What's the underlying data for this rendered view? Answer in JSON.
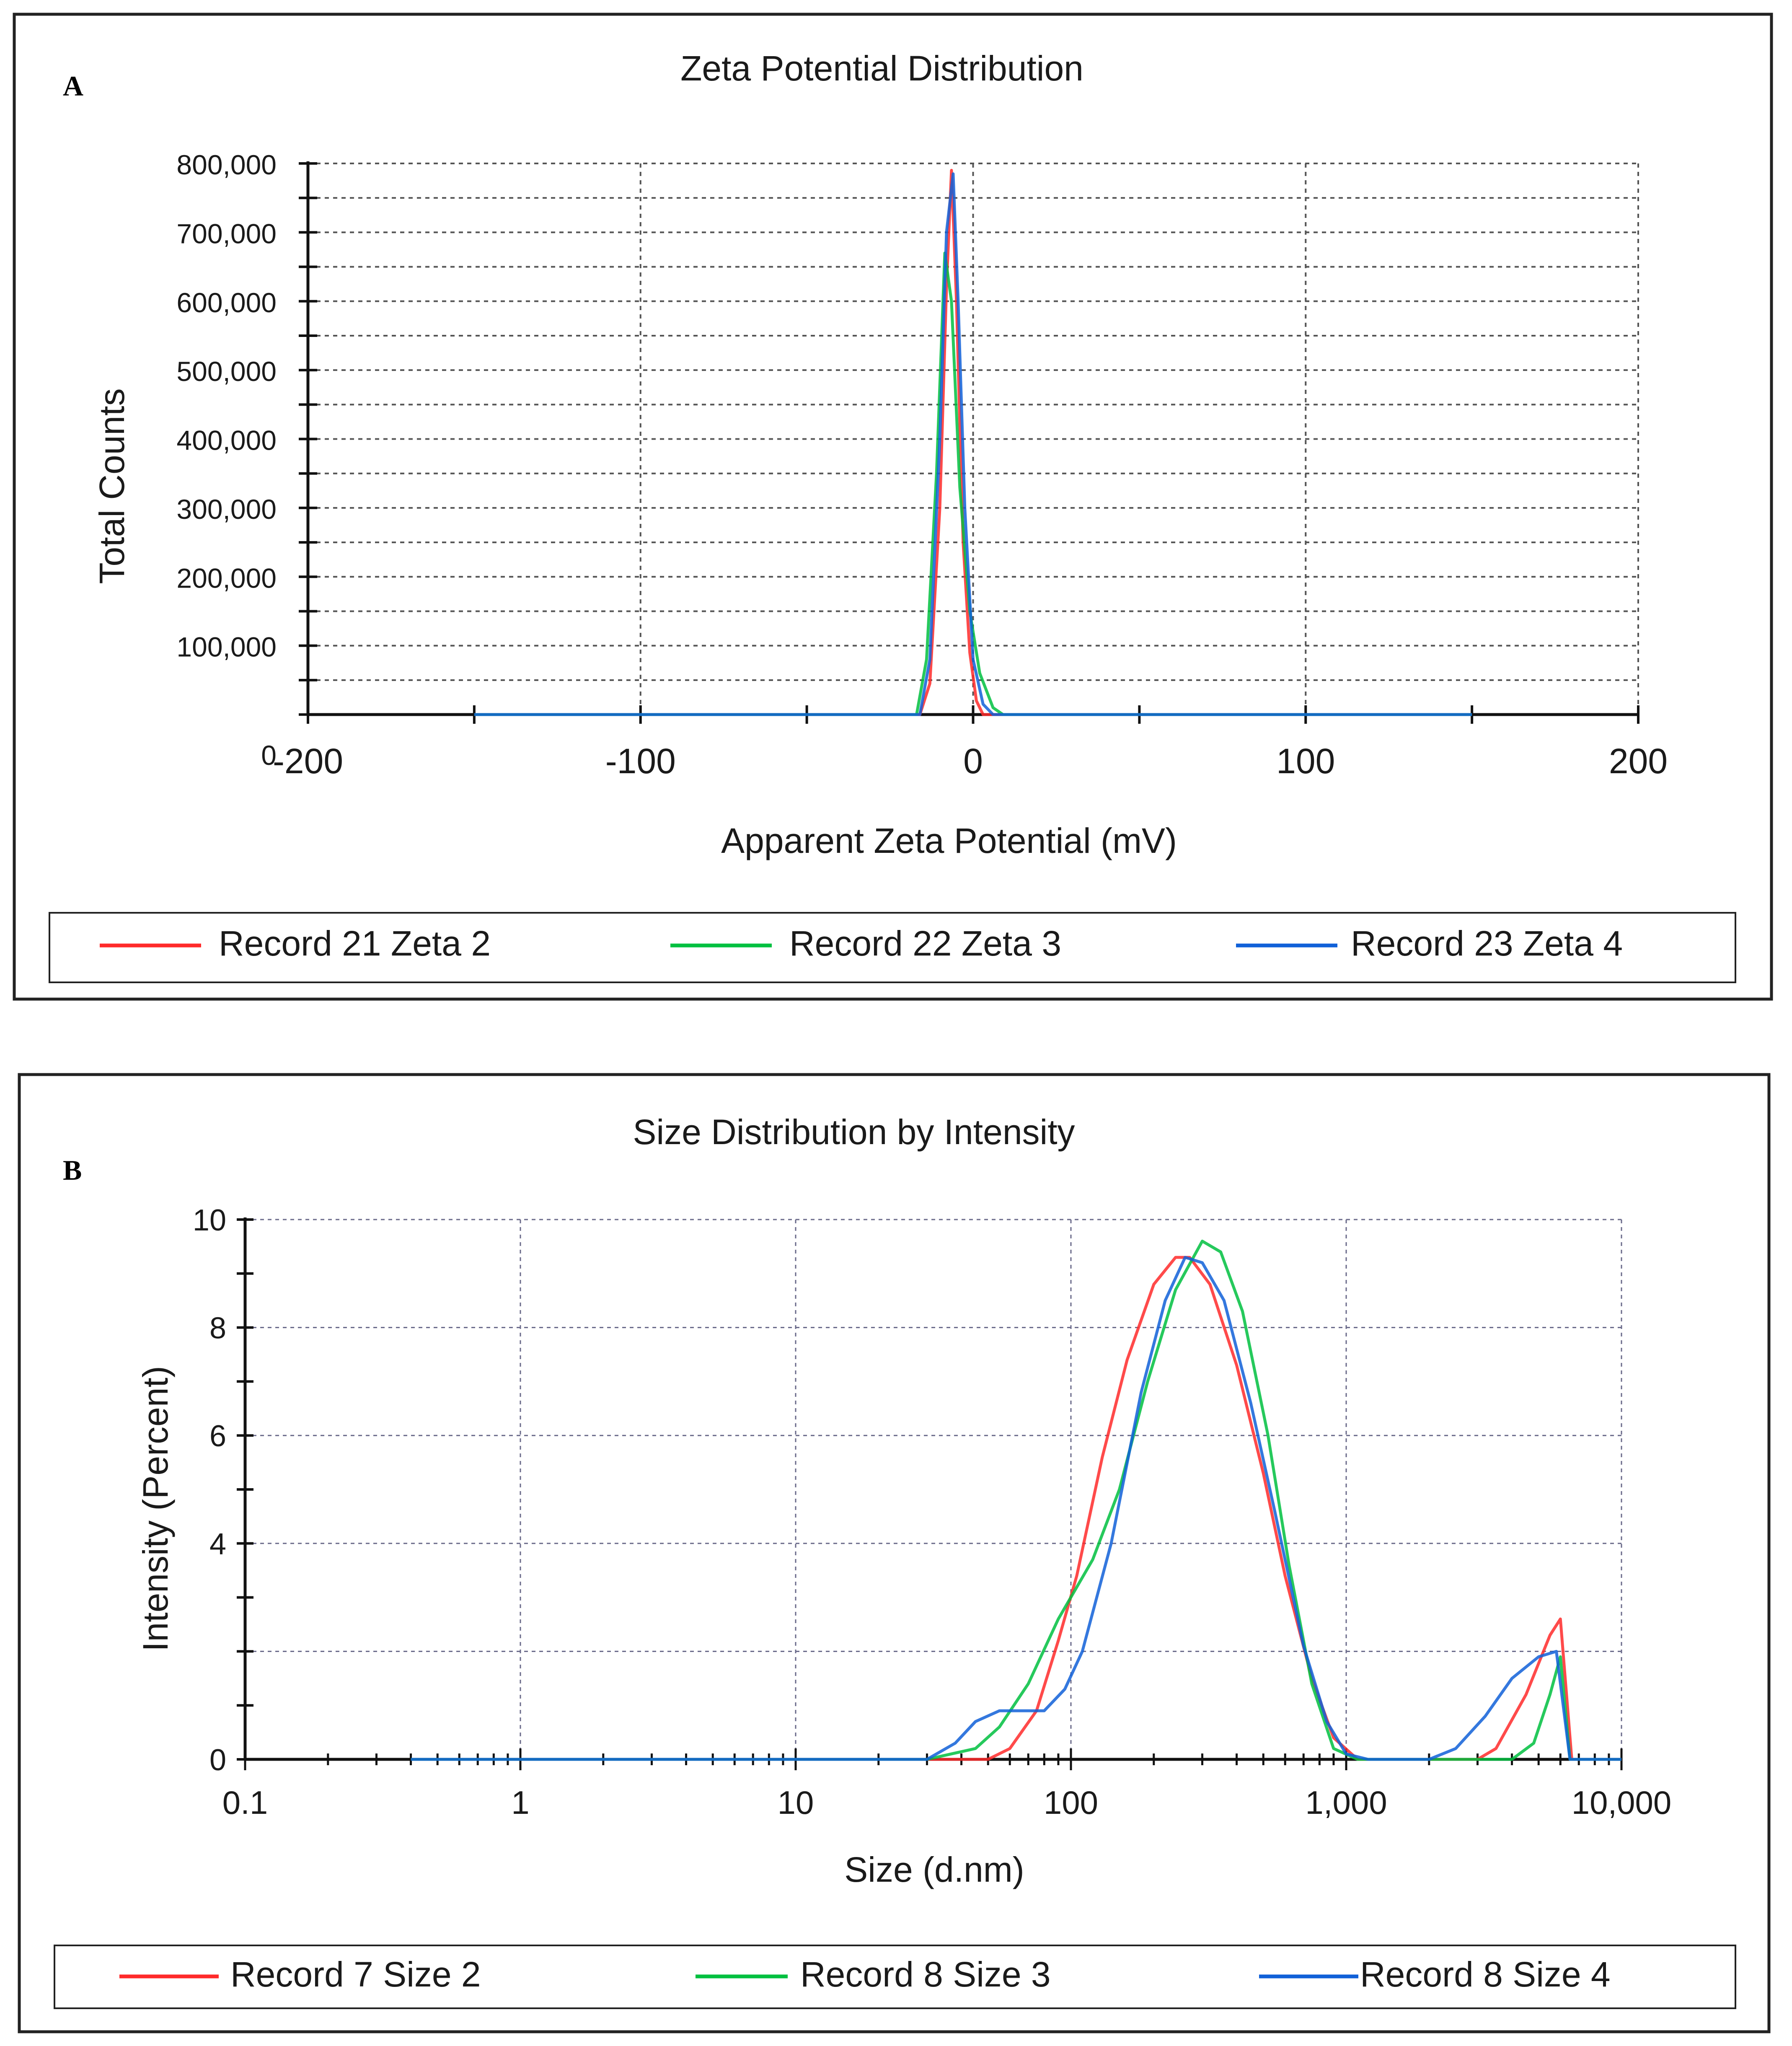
{
  "chart_data": [
    {
      "panel_label": "A",
      "type": "line",
      "title": "Zeta Potential Distribution",
      "xlabel": "Apparent Zeta Potential (mV)",
      "ylabel": "Total Counts",
      "xlim": [
        -200,
        200
      ],
      "ylim": [
        0,
        800000
      ],
      "x_ticks": [
        {
          "value": -200,
          "label": "-200"
        },
        {
          "value": -100,
          "label": "-100"
        },
        {
          "value": 0,
          "label": "0"
        },
        {
          "value": 100,
          "label": "100"
        },
        {
          "value": 200,
          "label": "200"
        }
      ],
      "y_ticks": [
        {
          "value": 0,
          "label": "0"
        },
        {
          "value": 100000,
          "label": "100,000"
        },
        {
          "value": 200000,
          "label": "200,000"
        },
        {
          "value": 300000,
          "label": "300,000"
        },
        {
          "value": 400000,
          "label": "400,000"
        },
        {
          "value": 500000,
          "label": "500,000"
        },
        {
          "value": 600000,
          "label": "600,000"
        },
        {
          "value": 700000,
          "label": "700,000"
        },
        {
          "value": 800000,
          "label": "800,000"
        }
      ],
      "grid": true,
      "legend_position": "bottom",
      "series": [
        {
          "name": "Record 21 Zeta 2",
          "color": "#ff2a2a",
          "points": [
            [
              -150,
              0
            ],
            [
              -16,
              0
            ],
            [
              -13,
              45000
            ],
            [
              -10,
              300000
            ],
            [
              -8,
              620000
            ],
            [
              -6.5,
              790000
            ],
            [
              -5,
              600000
            ],
            [
              -3,
              250000
            ],
            [
              -1,
              90000
            ],
            [
              1,
              20000
            ],
            [
              3,
              0
            ],
            [
              150,
              0
            ]
          ]
        },
        {
          "name": "Record 22 Zeta 3",
          "color": "#00c040",
          "points": [
            [
              -150,
              0
            ],
            [
              -17,
              0
            ],
            [
              -14,
              80000
            ],
            [
              -11,
              350000
            ],
            [
              -8.5,
              670000
            ],
            [
              -6.5,
              600000
            ],
            [
              -4,
              330000
            ],
            [
              -1,
              150000
            ],
            [
              2,
              60000
            ],
            [
              6,
              10000
            ],
            [
              9,
              0
            ],
            [
              150,
              0
            ]
          ]
        },
        {
          "name": "Record 23 Zeta 4",
          "color": "#1060d8",
          "points": [
            [
              -150,
              0
            ],
            [
              -16,
              0
            ],
            [
              -13,
              80000
            ],
            [
              -10,
              400000
            ],
            [
              -8,
              700000
            ],
            [
              -6,
              785000
            ],
            [
              -4.5,
              600000
            ],
            [
              -2.5,
              300000
            ],
            [
              0,
              80000
            ],
            [
              3,
              15000
            ],
            [
              6,
              0
            ],
            [
              150,
              0
            ]
          ]
        }
      ]
    },
    {
      "panel_label": "B",
      "type": "line",
      "title": "Size Distribution by Intensity",
      "xlabel": "Size (d.nm)",
      "ylabel": "Intensity (Percent)",
      "x_scale": "log",
      "xlim": [
        0.1,
        10000
      ],
      "ylim": [
        0,
        10
      ],
      "x_ticks": [
        {
          "value": 0.1,
          "label": "0.1"
        },
        {
          "value": 1,
          "label": "1"
        },
        {
          "value": 10,
          "label": "10"
        },
        {
          "value": 100,
          "label": "100"
        },
        {
          "value": 1000,
          "label": "1,000"
        },
        {
          "value": 10000,
          "label": "10,000"
        }
      ],
      "y_ticks": [
        {
          "value": 0,
          "label": "0"
        },
        {
          "value": 4,
          "label": "4"
        },
        {
          "value": 6,
          "label": "6"
        },
        {
          "value": 8,
          "label": "8"
        },
        {
          "value": 10,
          "label": "10"
        }
      ],
      "grid": true,
      "legend_position": "bottom",
      "series": [
        {
          "name": "Record 7 Size 2",
          "color": "#ff2a2a",
          "points": [
            [
              0.4,
              0
            ],
            [
              50,
              0
            ],
            [
              60,
              0.2
            ],
            [
              75,
              0.9
            ],
            [
              90,
              2.2
            ],
            [
              105,
              3.4
            ],
            [
              130,
              5.6
            ],
            [
              160,
              7.4
            ],
            [
              200,
              8.8
            ],
            [
              240,
              9.3
            ],
            [
              270,
              9.3
            ],
            [
              320,
              8.8
            ],
            [
              400,
              7.3
            ],
            [
              500,
              5.3
            ],
            [
              600,
              3.4
            ],
            [
              750,
              1.5
            ],
            [
              900,
              0.4
            ],
            [
              1100,
              0
            ],
            [
              3000,
              0
            ],
            [
              3500,
              0.2
            ],
            [
              4500,
              1.2
            ],
            [
              5500,
              2.3
            ],
            [
              6000,
              2.6
            ],
            [
              6600,
              0
            ],
            [
              10000,
              0
            ]
          ]
        },
        {
          "name": "Record 8 Size 3",
          "color": "#00c040",
          "points": [
            [
              0.4,
              0
            ],
            [
              30,
              0
            ],
            [
              45,
              0.2
            ],
            [
              55,
              0.6
            ],
            [
              70,
              1.4
            ],
            [
              90,
              2.6
            ],
            [
              120,
              3.7
            ],
            [
              150,
              5.0
            ],
            [
              190,
              7.0
            ],
            [
              240,
              8.7
            ],
            [
              300,
              9.6
            ],
            [
              350,
              9.4
            ],
            [
              420,
              8.3
            ],
            [
              520,
              6.0
            ],
            [
              620,
              3.6
            ],
            [
              750,
              1.4
            ],
            [
              900,
              0.2
            ],
            [
              1100,
              0
            ],
            [
              4000,
              0
            ],
            [
              4800,
              0.3
            ],
            [
              5500,
              1.2
            ],
            [
              6000,
              1.9
            ],
            [
              6500,
              0
            ],
            [
              10000,
              0
            ]
          ]
        },
        {
          "name": "Record 8 Size 4",
          "color": "#1060d8",
          "points": [
            [
              0.4,
              0
            ],
            [
              30,
              0
            ],
            [
              38,
              0.3
            ],
            [
              45,
              0.7
            ],
            [
              55,
              0.9
            ],
            [
              65,
              0.9
            ],
            [
              80,
              0.9
            ],
            [
              95,
              1.3
            ],
            [
              110,
              2.0
            ],
            [
              140,
              4.0
            ],
            [
              180,
              6.8
            ],
            [
              220,
              8.5
            ],
            [
              260,
              9.3
            ],
            [
              300,
              9.2
            ],
            [
              360,
              8.5
            ],
            [
              450,
              6.6
            ],
            [
              550,
              4.6
            ],
            [
              700,
              2.1
            ],
            [
              850,
              0.7
            ],
            [
              1000,
              0.1
            ],
            [
              1200,
              0
            ],
            [
              2000,
              0
            ],
            [
              2500,
              0.2
            ],
            [
              3200,
              0.8
            ],
            [
              4000,
              1.5
            ],
            [
              5000,
              1.9
            ],
            [
              5800,
              2.0
            ],
            [
              6500,
              0
            ],
            [
              10000,
              0
            ]
          ]
        }
      ]
    }
  ]
}
